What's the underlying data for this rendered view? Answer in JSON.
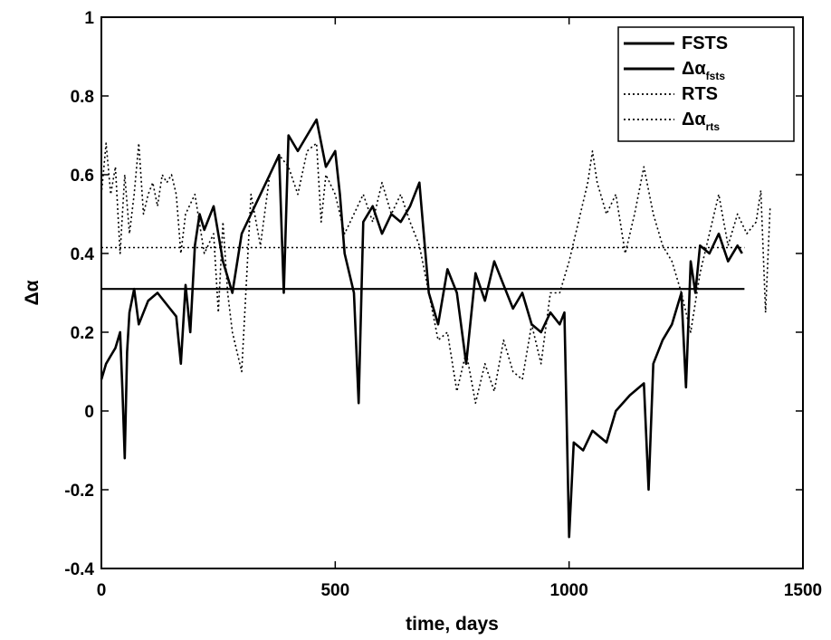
{
  "chart_data": {
    "type": "line",
    "title": "",
    "xlabel": "time, days",
    "ylabel": "Δα",
    "xlim": [
      0,
      1500
    ],
    "ylim": [
      -0.4,
      1
    ],
    "xticks": [
      "0",
      "500",
      "1000",
      "1500"
    ],
    "yticks": [
      "-0.4",
      "-0.2",
      "0",
      "0.2",
      "0.4",
      "0.6",
      "0.8",
      "1"
    ],
    "grid": false,
    "legend_position": "top-right",
    "legend": [
      {
        "text": "FSTS",
        "style": "solid"
      },
      {
        "text": "Δα",
        "sub": "fsts",
        "style": "solid"
      },
      {
        "text": "RTS",
        "style": "dotted"
      },
      {
        "text": "Δα",
        "sub": "rts",
        "style": "dotted"
      }
    ],
    "series": [
      {
        "name": "FSTS",
        "style": "solid",
        "x": [
          0,
          10,
          20,
          30,
          40,
          45,
          50,
          55,
          60,
          70,
          80,
          100,
          120,
          140,
          160,
          170,
          180,
          190,
          200,
          210,
          220,
          240,
          260,
          280,
          300,
          320,
          340,
          360,
          380,
          390,
          400,
          420,
          440,
          460,
          480,
          500,
          510,
          520,
          540,
          550,
          560,
          580,
          600,
          620,
          640,
          660,
          680,
          700,
          720,
          740,
          760,
          780,
          800,
          820,
          840,
          860,
          880,
          900,
          920,
          940,
          960,
          980,
          990,
          1000,
          1010,
          1030,
          1050,
          1080,
          1100,
          1130,
          1160,
          1170,
          1180,
          1200,
          1220,
          1240,
          1250,
          1260,
          1270,
          1280,
          1300,
          1320,
          1340,
          1360,
          1370
        ],
        "y": [
          0.08,
          0.12,
          0.14,
          0.16,
          0.2,
          0.05,
          -0.12,
          0.15,
          0.25,
          0.31,
          0.22,
          0.28,
          0.3,
          0.27,
          0.24,
          0.12,
          0.32,
          0.2,
          0.42,
          0.5,
          0.46,
          0.52,
          0.38,
          0.3,
          0.45,
          0.5,
          0.55,
          0.6,
          0.65,
          0.3,
          0.7,
          0.66,
          0.7,
          0.74,
          0.62,
          0.66,
          0.55,
          0.4,
          0.3,
          0.02,
          0.48,
          0.52,
          0.45,
          0.5,
          0.48,
          0.52,
          0.58,
          0.3,
          0.22,
          0.36,
          0.3,
          0.12,
          0.35,
          0.28,
          0.38,
          0.32,
          0.26,
          0.3,
          0.22,
          0.2,
          0.25,
          0.22,
          0.25,
          -0.32,
          -0.08,
          -0.1,
          -0.05,
          -0.08,
          0.0,
          0.04,
          0.07,
          -0.2,
          0.12,
          0.18,
          0.22,
          0.3,
          0.06,
          0.38,
          0.3,
          0.42,
          0.4,
          0.45,
          0.38,
          0.42,
          0.4
        ]
      },
      {
        "name": "Δαfsts",
        "style": "solid",
        "x": [
          0,
          1375
        ],
        "y": [
          0.31,
          0.31
        ]
      },
      {
        "name": "RTS",
        "style": "dotted",
        "x": [
          0,
          10,
          20,
          30,
          40,
          50,
          60,
          70,
          80,
          90,
          100,
          110,
          120,
          130,
          140,
          150,
          160,
          170,
          180,
          200,
          220,
          240,
          250,
          260,
          270,
          280,
          300,
          320,
          340,
          360,
          380,
          400,
          420,
          440,
          460,
          470,
          480,
          500,
          520,
          540,
          560,
          580,
          600,
          620,
          640,
          660,
          680,
          700,
          720,
          740,
          760,
          780,
          800,
          820,
          840,
          860,
          880,
          900,
          920,
          940,
          960,
          980,
          1000,
          1020,
          1040,
          1050,
          1060,
          1080,
          1100,
          1120,
          1140,
          1160,
          1180,
          1200,
          1220,
          1240,
          1260,
          1280,
          1300,
          1320,
          1340,
          1360,
          1380,
          1400,
          1410,
          1420,
          1430
        ],
        "y": [
          0.55,
          0.68,
          0.55,
          0.62,
          0.4,
          0.6,
          0.45,
          0.55,
          0.68,
          0.5,
          0.55,
          0.58,
          0.52,
          0.6,
          0.58,
          0.6,
          0.55,
          0.4,
          0.5,
          0.55,
          0.4,
          0.45,
          0.25,
          0.48,
          0.3,
          0.2,
          0.1,
          0.55,
          0.42,
          0.6,
          0.65,
          0.62,
          0.55,
          0.66,
          0.68,
          0.48,
          0.6,
          0.55,
          0.45,
          0.5,
          0.55,
          0.48,
          0.58,
          0.5,
          0.55,
          0.48,
          0.42,
          0.3,
          0.18,
          0.2,
          0.05,
          0.15,
          0.02,
          0.12,
          0.05,
          0.18,
          0.1,
          0.08,
          0.22,
          0.12,
          0.3,
          0.3,
          0.38,
          0.48,
          0.58,
          0.66,
          0.58,
          0.5,
          0.55,
          0.4,
          0.5,
          0.62,
          0.5,
          0.42,
          0.38,
          0.3,
          0.2,
          0.35,
          0.45,
          0.55,
          0.42,
          0.5,
          0.45,
          0.48,
          0.56,
          0.25,
          0.52
        ]
      },
      {
        "name": "Δαrts",
        "style": "dotted",
        "x": [
          0,
          1375
        ],
        "y": [
          0.415,
          0.415
        ]
      }
    ]
  }
}
